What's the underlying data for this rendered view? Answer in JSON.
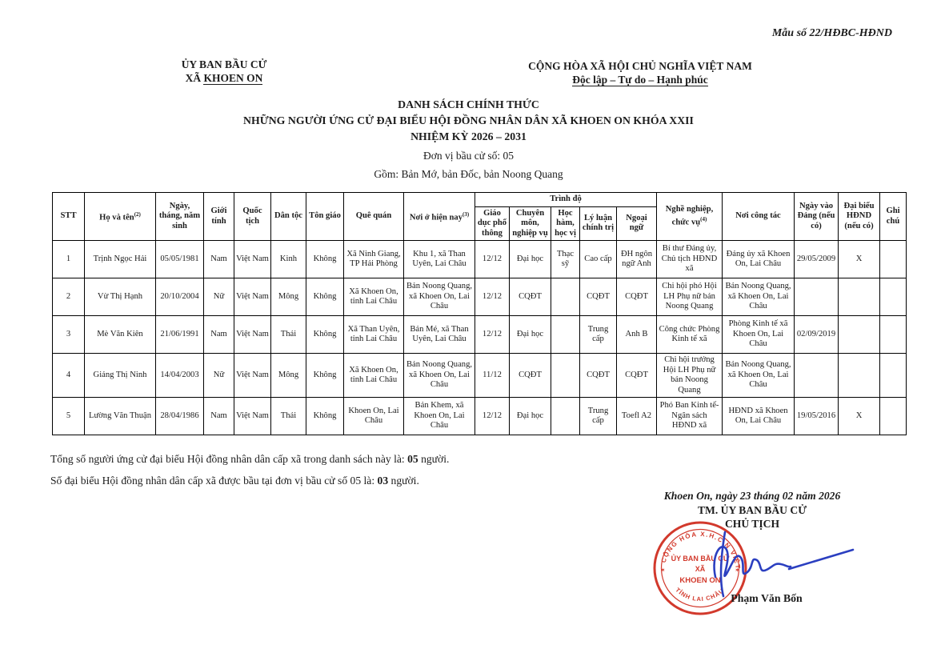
{
  "page": {
    "model_number": "Mẫu số 22/HĐBC-HĐND",
    "issuer": {
      "line1": "ỦY BAN BẦU CỬ",
      "line2_prefix": "XÃ ",
      "line2_underlined": "KHOEN ON"
    },
    "national": {
      "line1": "CỘNG HÒA XÃ HỘI CHỦ NGHĨA VIỆT NAM",
      "line2": "Độc lập – Tự do – Hạnh phúc"
    },
    "title": {
      "line1": "DANH SÁCH CHÍNH THỨC",
      "line2": "NHỮNG NGƯỜI ỨNG CỬ ĐẠI BIỂU HỘI ĐỒNG NHÂN DÂN XÃ KHOEN ON KHÓA XXII",
      "line3": "NHIỆM KỲ 2026 – 2031",
      "unit": "Đơn vị bầu cử số: 05",
      "scope": "Gồm: Bản Mớ, bản Đốc, bản Noong Quang"
    }
  },
  "table": {
    "headers": {
      "stt": "STT",
      "ho_ten": "Họ và tên",
      "ho_ten_sup": "(2)",
      "ngay_sinh": "Ngày, tháng, năm sinh",
      "gioi_tinh": "Giới tính",
      "quoc_tich": "Quốc tịch",
      "dan_toc": "Dân tộc",
      "ton_giao": "Tôn giáo",
      "que_quan": "Quê quán",
      "noi_o": "Nơi ở hiện nay",
      "noi_o_sup": "(3)",
      "trinh_do": "Trình độ",
      "gdpt": "Giáo dục phổ thông",
      "cmnv": "Chuyên môn, nghiệp vụ",
      "hhhv": "Học hàm, học vị",
      "llct": "Lý luận chính trị",
      "ngoai_ngu": "Ngoại ngữ",
      "nghe_nghiep": "Nghề nghiệp, chức vụ",
      "nghe_nghiep_sup": "(4)",
      "noi_cong_tac": "Nơi công tác",
      "ngay_vao_dang": "Ngày vào Đảng (nếu có)",
      "dai_bieu": "Đại biểu HĐND (nếu có)",
      "ghi_chu": "Ghi chú"
    },
    "rows": [
      [
        "1",
        "Trịnh Ngọc Hải",
        "05/05/1981",
        "Nam",
        "Việt Nam",
        "Kinh",
        "Không",
        "Xã Ninh Giang, TP Hải Phòng",
        "Khu 1, xã Than Uyên, Lai Châu",
        "12/12",
        "Đại học",
        "Thạc sỹ",
        "Cao cấp",
        "ĐH ngôn ngữ Anh",
        "Bí thư Đảng ủy, Chủ tịch HĐND xã",
        "Đảng ủy xã Khoen On, Lai Châu",
        "29/05/2009",
        "X",
        ""
      ],
      [
        "2",
        "Vừ Thị Hạnh",
        "20/10/2004",
        "Nữ",
        "Việt Nam",
        "Mông",
        "Không",
        "Xã Khoen On, tỉnh Lai Châu",
        "Bản Noong Quang, xã Khoen On, Lai Châu",
        "12/12",
        "CQĐT",
        "",
        "CQĐT",
        "CQĐT",
        "Chi hội phó Hội LH Phụ nữ bản Noong Quang",
        "Bản Noong Quang, xã Khoen On, Lai Châu",
        "",
        "",
        ""
      ],
      [
        "3",
        "Mè Văn Kiên",
        "21/06/1991",
        "Nam",
        "Việt Nam",
        "Thái",
        "Không",
        "Xã Than Uyên, tỉnh Lai Châu",
        "Bản Mé, xã Than Uyên, Lai Châu",
        "12/12",
        "Đại học",
        "",
        "Trung cấp",
        "Anh B",
        "Công chức Phòng Kinh tế xã",
        "Phòng Kinh tế xã Khoen On, Lai Châu",
        "02/09/2019",
        "",
        ""
      ],
      [
        "4",
        "Giảng Thị Ninh",
        "14/04/2003",
        "Nữ",
        "Việt Nam",
        "Mông",
        "Không",
        "Xã Khoen On, tỉnh Lai Châu",
        "Bản Noong Quang, xã Khoen On, Lai Châu",
        "11/12",
        "CQĐT",
        "",
        "CQĐT",
        "CQĐT",
        "Chi hội trưởng Hội LH Phụ nữ bản Noong Quang",
        "Bản Noong Quang, xã Khoen On, Lai Châu",
        "",
        "",
        ""
      ],
      [
        "5",
        "Lường Văn Thuận",
        "28/04/1986",
        "Nam",
        "Việt Nam",
        "Thái",
        "Không",
        "Khoen On, Lai Châu",
        "Bản Khem, xã Khoen On, Lai Châu",
        "12/12",
        "Đại học",
        "",
        "Trung cấp",
        "Toefl A2",
        "Phó Ban Kinh tế- Ngân sách HĐND xã",
        "HĐND xã Khoen On, Lai Châu",
        "19/05/2016",
        "X",
        ""
      ]
    ]
  },
  "totals": {
    "line1_prefix": "Tổng số người ứng cử đại biểu Hội đồng nhân dân cấp xã trong danh sách này là: ",
    "line1_value": "05",
    "line1_suffix": " người.",
    "line2_prefix": "Số đại biểu Hội đồng nhân dân cấp xã được bầu tại đơn vị bầu cử số 05 là: ",
    "line2_value": "03",
    "line2_suffix": " người."
  },
  "signature": {
    "date_line": "Khoen On, ngày 23 tháng 02 năm 2026",
    "org": "TM. ỦY BAN BẦU CỬ",
    "role": "CHỦ TỊCH",
    "name": "Phạm Văn Bốn",
    "stamp": {
      "top_arc": "CỘNG HÒA X.H.C.N VIỆT NAM",
      "center1": "ỦY BAN BẦU CỬ",
      "center2": "XÃ",
      "center3": "KHOEN ON",
      "bottom_arc": "TỈNH LAI CHÂU",
      "color": "#cf2b1d"
    },
    "ink_color": "#2b3fc0"
  }
}
